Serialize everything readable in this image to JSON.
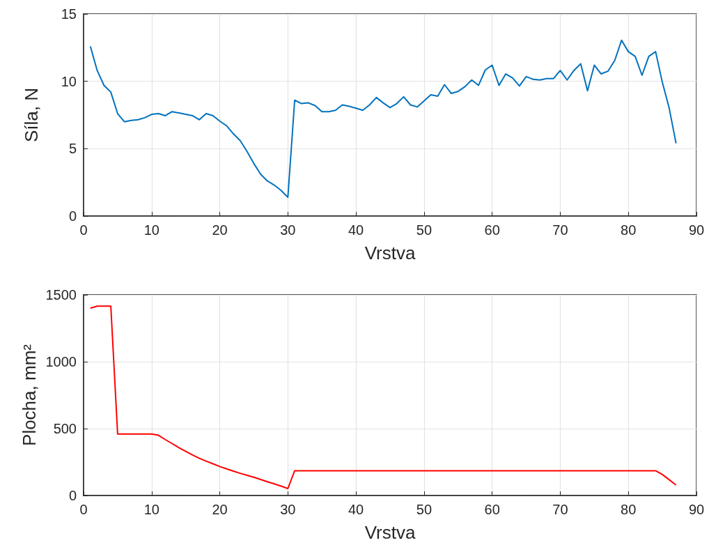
{
  "chart_data": [
    {
      "type": "line",
      "xlabel": "Vrstva",
      "ylabel": "Síla, N",
      "x": [
        1,
        2,
        3,
        4,
        5,
        6,
        7,
        8,
        9,
        10,
        11,
        12,
        13,
        14,
        15,
        16,
        17,
        18,
        19,
        20,
        21,
        22,
        23,
        24,
        25,
        26,
        27,
        28,
        29,
        30,
        31,
        32,
        33,
        34,
        35,
        36,
        37,
        38,
        39,
        40,
        41,
        42,
        43,
        44,
        45,
        46,
        47,
        48,
        49,
        50,
        51,
        52,
        53,
        54,
        55,
        56,
        57,
        58,
        59,
        60,
        61,
        62,
        63,
        64,
        65,
        66,
        67,
        68,
        69,
        70,
        71,
        72,
        73,
        74,
        75,
        76,
        77,
        78,
        79,
        80,
        81,
        82,
        83,
        84,
        85,
        86,
        87
      ],
      "series": [
        {
          "color": "#0072bd",
          "values": [
            12.6,
            10.8,
            9.7,
            9.2,
            7.6,
            7.0,
            7.1,
            7.15,
            7.3,
            7.55,
            7.6,
            7.45,
            7.75,
            7.65,
            7.55,
            7.45,
            7.15,
            7.6,
            7.45,
            7.05,
            6.7,
            6.1,
            5.6,
            4.8,
            3.9,
            3.1,
            2.6,
            2.3,
            1.9,
            1.4,
            8.6,
            8.35,
            8.4,
            8.2,
            7.75,
            7.75,
            7.85,
            8.25,
            8.15,
            8.0,
            7.85,
            8.25,
            8.8,
            8.4,
            8.05,
            8.35,
            8.85,
            8.25,
            8.1,
            8.55,
            9.0,
            8.9,
            9.75,
            9.1,
            9.25,
            9.6,
            10.1,
            9.7,
            10.85,
            11.2,
            9.7,
            10.55,
            10.25,
            9.65,
            10.35,
            10.15,
            10.1,
            10.2,
            10.2,
            10.8,
            10.1,
            10.8,
            11.3,
            9.3,
            11.2,
            10.55,
            10.75,
            11.55,
            13.05,
            12.2,
            11.85,
            10.45,
            11.85,
            12.2,
            9.9,
            8.0,
            5.4
          ]
        }
      ],
      "xlim": [
        0,
        90
      ],
      "xticks": [
        0,
        10,
        20,
        30,
        40,
        50,
        60,
        70,
        80,
        90
      ],
      "ylim": [
        0,
        15
      ],
      "yticks": [
        0,
        5,
        10,
        15
      ],
      "grid": true
    },
    {
      "type": "line",
      "xlabel": "Vrstva",
      "ylabel": "Plocha, mm²",
      "x": [
        1,
        2,
        3,
        4,
        5,
        6,
        7,
        8,
        9,
        10,
        11,
        12,
        13,
        14,
        15,
        16,
        17,
        18,
        19,
        20,
        21,
        22,
        23,
        24,
        25,
        26,
        27,
        28,
        29,
        30,
        31,
        32,
        33,
        34,
        35,
        36,
        37,
        38,
        39,
        40,
        41,
        42,
        43,
        44,
        45,
        46,
        47,
        48,
        49,
        50,
        51,
        52,
        53,
        54,
        55,
        56,
        57,
        58,
        59,
        60,
        61,
        62,
        63,
        64,
        65,
        66,
        67,
        68,
        69,
        70,
        71,
        72,
        73,
        74,
        75,
        76,
        77,
        78,
        79,
        80,
        81,
        82,
        83,
        84,
        85,
        86,
        87
      ],
      "series": [
        {
          "color": "#ff0000",
          "values": [
            1400,
            1415,
            1415,
            1415,
            460,
            460,
            460,
            460,
            460,
            460,
            450,
            418,
            388,
            358,
            330,
            303,
            278,
            257,
            237,
            217,
            199,
            182,
            166,
            151,
            137,
            120,
            103,
            87,
            70,
            52,
            185,
            185,
            185,
            185,
            185,
            185,
            185,
            185,
            185,
            185,
            185,
            185,
            185,
            185,
            185,
            185,
            185,
            185,
            185,
            185,
            185,
            185,
            185,
            185,
            185,
            185,
            185,
            185,
            185,
            185,
            185,
            185,
            185,
            185,
            185,
            185,
            185,
            185,
            185,
            185,
            185,
            185,
            185,
            185,
            185,
            185,
            185,
            185,
            185,
            185,
            185,
            185,
            185,
            185,
            157,
            118,
            78
          ]
        }
      ],
      "xlim": [
        0,
        90
      ],
      "xticks": [
        0,
        10,
        20,
        30,
        40,
        50,
        60,
        70,
        80,
        90
      ],
      "ylim": [
        0,
        1500
      ],
      "yticks": [
        0,
        500,
        1000,
        1500
      ],
      "grid": true
    }
  ]
}
